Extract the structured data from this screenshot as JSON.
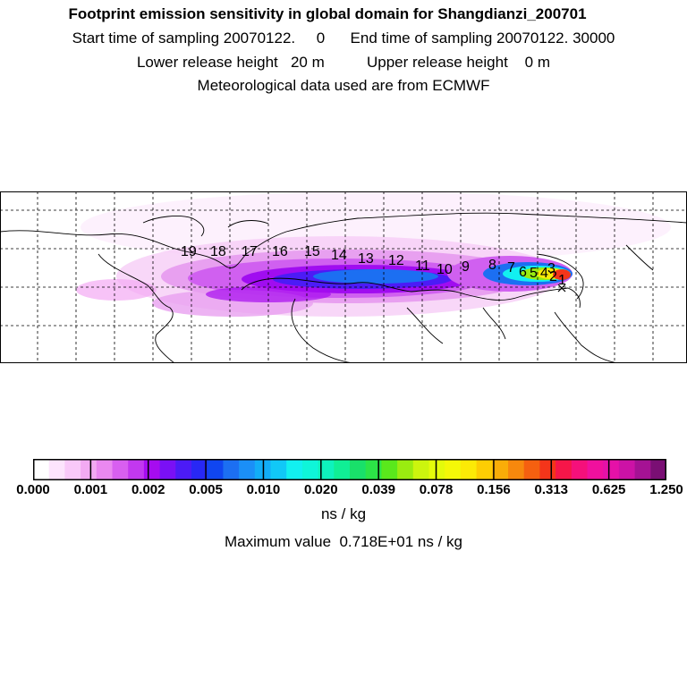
{
  "header": {
    "title": "Footprint emission sensitivity in global domain for Shangdianzi_200701",
    "sampling": "Start time of sampling 20070122.     0      End time of sampling 20070122. 30000",
    "release": "Lower release height   20 m          Upper release height    0 m",
    "met": "Meteorological data used are from ECMWF"
  },
  "map": {
    "day_labels": [
      "19",
      "18",
      "17",
      "16",
      "15",
      "14",
      "13",
      "12",
      "11",
      "10",
      "9",
      "8",
      "7",
      "6",
      "5",
      "4",
      "3",
      "2",
      "1"
    ],
    "station_marker": "cross-icon"
  },
  "colorbar": {
    "colors": [
      "#ffffff",
      "#fde4fd",
      "#f9c9f9",
      "#f3aaf3",
      "#ea88f0",
      "#d85ff0",
      "#c238ef",
      "#a60cf0",
      "#7a10f5",
      "#4c1bf6",
      "#2828f5",
      "#1046f0",
      "#1c6ff2",
      "#1b8ff7",
      "#12adf7",
      "#11c8f7",
      "#12f0f0",
      "#0ff5d9",
      "#0ef2bd",
      "#10ef95",
      "#19e06a",
      "#2ce447",
      "#5ae81c",
      "#9aec10",
      "#ccf50e",
      "#e4fb0b",
      "#f4f808",
      "#fcea06",
      "#fdcd03",
      "#f9ad08",
      "#f7880d",
      "#f56010",
      "#f4351a",
      "#f61649",
      "#f5107b",
      "#f0109e",
      "#e511a8",
      "#cc12a6",
      "#a51294",
      "#7a0f74"
    ],
    "tick_labels": [
      "0.000",
      "0.001",
      "0.002",
      "0.005",
      "0.010",
      "0.020",
      "0.039",
      "0.078",
      "0.156",
      "0.313",
      "0.625",
      "1.250"
    ],
    "units": "ns / kg"
  },
  "max_value": "Maximum value  0.718E+01 ns / kg"
}
